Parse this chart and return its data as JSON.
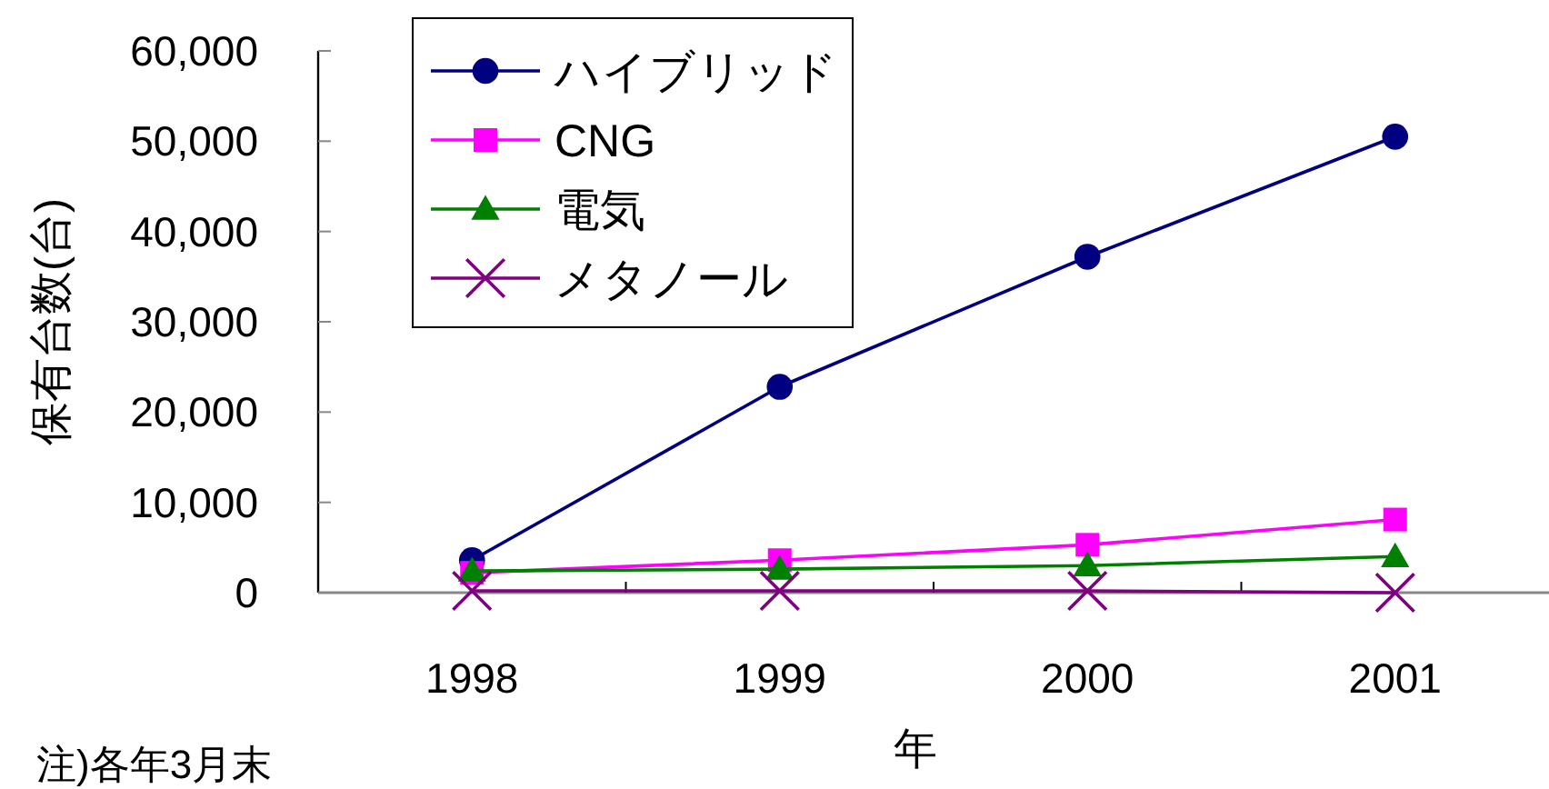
{
  "chart_data": {
    "type": "line",
    "xlabel": "年",
    "ylabel": "保有台数(台)",
    "annotations": [
      "注)各年3月末"
    ],
    "categories": [
      "1998",
      "1999",
      "2000",
      "2001"
    ],
    "series": [
      {
        "name": "ハイブリッド",
        "color": "#000080",
        "marker": "circle",
        "values": [
          3600,
          22800,
          37200,
          50500
        ]
      },
      {
        "name": "CNG",
        "color": "#ff00ff",
        "marker": "square",
        "values": [
          2200,
          3600,
          5300,
          8100
        ]
      },
      {
        "name": "電気",
        "color": "#008000",
        "marker": "triangle",
        "values": [
          2400,
          2600,
          3000,
          4000
        ]
      },
      {
        "name": "メタノール",
        "color": "#800080",
        "marker": "cross",
        "values": [
          200,
          200,
          200,
          0
        ]
      }
    ],
    "ylim": [
      0,
      60000
    ],
    "yticks": [
      {
        "value": 0,
        "label": "0"
      },
      {
        "value": 10000,
        "label": "10,000"
      },
      {
        "value": 20000,
        "label": "20,000"
      },
      {
        "value": 30000,
        "label": "30,000"
      },
      {
        "value": 40000,
        "label": "40,000"
      },
      {
        "value": 50000,
        "label": "50,000"
      },
      {
        "value": 60000,
        "label": "60,000"
      }
    ],
    "grid": false,
    "legend": "top left"
  }
}
